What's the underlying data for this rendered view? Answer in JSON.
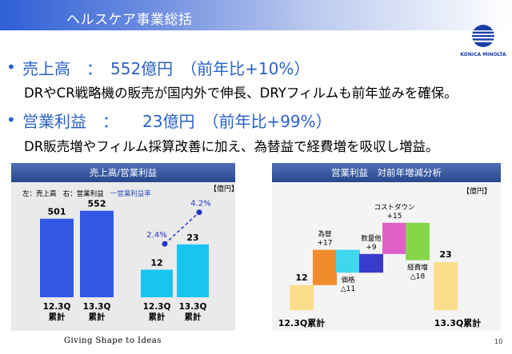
{
  "title": "ヘルスケア事業総括",
  "logo": {
    "text": "KONICA MINOLTA",
    "colors": {
      "mark": "#1a3fa8"
    }
  },
  "bullets": [
    {
      "lead": "売上高　：　552億円　（前年比+10%）",
      "detail": "DRやCR戦略機の販売が国内外で伸長、DRYフィルムも前年並みを確保。"
    },
    {
      "lead": "営業利益　：　　23億円　（前年比+99%）",
      "detail": "DR販売増やフィルム採算改善に加え、為替益で経費増を吸収し増益。"
    }
  ],
  "left_panel": {
    "title": "売上高/営業利益",
    "unit": "【億円】",
    "legend": {
      "left": "左：売上高",
      "right": "右：営業利益",
      "line": "一営業利益率"
    }
  },
  "right_panel": {
    "title": "営業利益　対前年増減分析",
    "unit": "【億円】"
  },
  "chart_data": [
    {
      "type": "bar",
      "title": "売上高",
      "categories": [
        "12.3Q 累計",
        "13.3Q 累計"
      ],
      "category_lines": [
        [
          "12.3Q",
          "累計"
        ],
        [
          "13.3Q",
          "累計"
        ]
      ],
      "values": [
        501,
        552
      ],
      "value_labels": [
        "501",
        "552"
      ],
      "ylim": [
        0,
        600
      ],
      "color": "#3458e6"
    },
    {
      "type": "bar",
      "title": "営業利益",
      "categories": [
        "12.3Q 累計",
        "13.3Q 累計"
      ],
      "category_lines": [
        [
          "12.3Q",
          "累計"
        ],
        [
          "13.3Q",
          "累計"
        ]
      ],
      "values": [
        12,
        23
      ],
      "value_labels": [
        "12",
        "23"
      ],
      "ylim": [
        0,
        40
      ],
      "color": "#19c4f0",
      "line_series": {
        "values": [
          2.4,
          4.2
        ],
        "labels": [
          "2.4%",
          "4.2%"
        ],
        "ylim": [
          0,
          5
        ],
        "color": "#2236c8"
      }
    },
    {
      "type": "bar",
      "title": "営業利益 対前年増減分析",
      "categories": [
        "12.3Q累計",
        "為替",
        "価格",
        "数量他",
        "コストダウン",
        "経費増",
        "13.3Q累計"
      ],
      "bars": [
        {
          "label": "12.3Q累計",
          "start": 0,
          "end": 12,
          "value_label": "12",
          "lines": [],
          "color": "#fbdc8a",
          "kind": "total"
        },
        {
          "label": "為替",
          "start": 12,
          "end": 29,
          "value_label": "+17",
          "lines": [
            "為替",
            "+17"
          ],
          "color": "#f28b2b",
          "kind": "delta"
        },
        {
          "label": "価格",
          "start": 18,
          "end": 29,
          "value_label": "△11",
          "lines": [
            "価格",
            "△11"
          ],
          "color": "#3fd6ee",
          "kind": "delta"
        },
        {
          "label": "数量他",
          "start": 18,
          "end": 27,
          "value_label": "+9",
          "lines": [
            "数量他",
            "+9"
          ],
          "color": "#3a3bcd",
          "kind": "delta"
        },
        {
          "label": "コストダウン",
          "start": 27,
          "end": 42,
          "value_label": "+15",
          "lines": [
            "コストダウン",
            "+15"
          ],
          "color": "#e060c8",
          "kind": "delta"
        },
        {
          "label": "経費増",
          "start": 24,
          "end": 42,
          "value_label": "△18",
          "lines": [
            "経費増",
            "△18"
          ],
          "color": "#86d64a",
          "kind": "delta"
        },
        {
          "label": "13.3Q累計",
          "start": 0,
          "end": 23,
          "value_label": "23",
          "lines": [],
          "color": "#fbdc8a",
          "kind": "total"
        }
      ],
      "axis_labels": [
        "12.3Q累計",
        "13.3Q累計"
      ],
      "ylim": [
        0,
        45
      ]
    }
  ],
  "footer": "Giving Shape to Ideas",
  "page_number": "10"
}
